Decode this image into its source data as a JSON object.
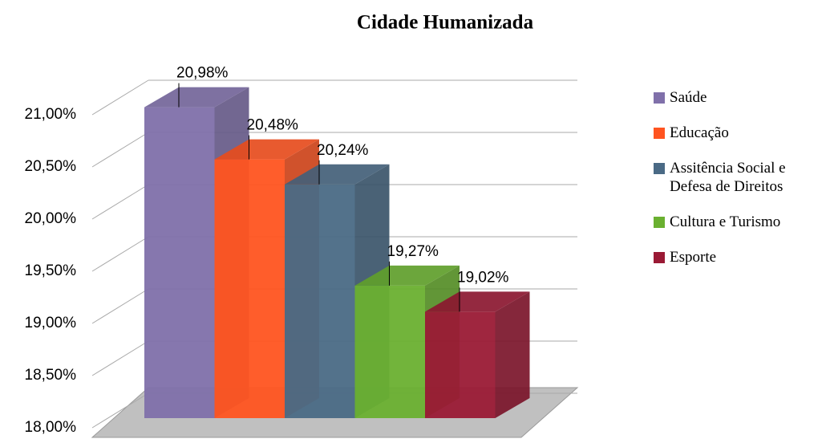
{
  "chart_data": {
    "type": "bar3d",
    "title": "Cidade Humanizada",
    "ylim": [
      18,
      21
    ],
    "yticks": [
      {
        "value": 18,
        "label": "18,00%"
      },
      {
        "value": 18.5,
        "label": "18,50%"
      },
      {
        "value": 19,
        "label": "19,00%"
      },
      {
        "value": 19.5,
        "label": "19,50%"
      },
      {
        "value": 20,
        "label": "20,00%"
      },
      {
        "value": 20.5,
        "label": "20,50%"
      },
      {
        "value": 21,
        "label": "21,00%"
      }
    ],
    "grid": true,
    "legend": "right",
    "series": [
      {
        "name": "Saúde",
        "color": "#8070aa",
        "values": [
          20.98
        ],
        "value_labels": [
          "20,98%"
        ]
      },
      {
        "name": "Educação",
        "color": "#ff5420",
        "values": [
          20.48
        ],
        "value_labels": [
          "20,48%"
        ]
      },
      {
        "name": "Assitência Social e Defesa de Direitos",
        "color": "#4a6a85",
        "values": [
          20.24
        ],
        "value_labels": [
          "20,24%"
        ]
      },
      {
        "name": "Cultura e Turismo",
        "color": "#6ab030",
        "values": [
          19.27
        ],
        "value_labels": [
          "19,27%"
        ]
      },
      {
        "name": "Esporte",
        "color": "#9a1a35",
        "values": [
          19.02
        ],
        "value_labels": [
          "19,02%"
        ]
      }
    ]
  }
}
